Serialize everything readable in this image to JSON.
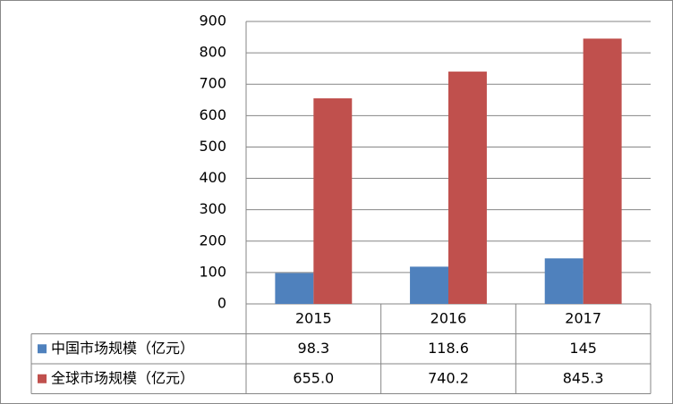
{
  "chart_data": {
    "type": "bar",
    "categories": [
      "2015",
      "2016",
      "2017"
    ],
    "series": [
      {
        "name": "中国市场规模（亿元）",
        "color": "#4f81bd",
        "values": [
          98.3,
          118.6,
          145
        ]
      },
      {
        "name": "全球市场规模（亿元）",
        "color": "#c0504d",
        "values": [
          655.0,
          740.2,
          845.3
        ],
        "value_labels": [
          "655.0",
          "740.2",
          "845.3"
        ]
      }
    ],
    "ylim": [
      0,
      900
    ],
    "yticks": [
      0,
      100,
      200,
      300,
      400,
      500,
      600,
      700,
      800,
      900
    ],
    "grid": true
  }
}
